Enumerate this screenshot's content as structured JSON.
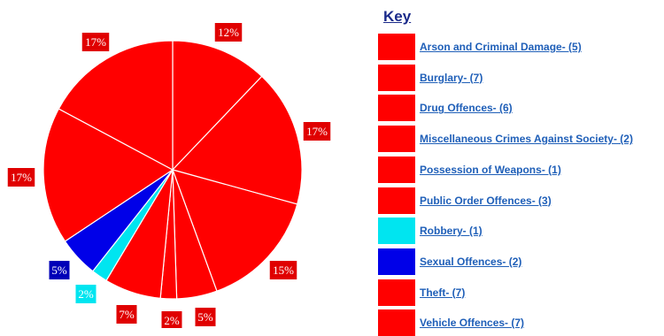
{
  "chart_data": {
    "type": "pie",
    "legend_title": "Key",
    "legend_placement": "right",
    "slices": [
      {
        "label": "12%",
        "value": 12,
        "color": "#ff0000"
      },
      {
        "label": "17%",
        "value": 17,
        "color": "#ff0000"
      },
      {
        "label": "15%",
        "value": 15,
        "color": "#ff0000"
      },
      {
        "label": "5%",
        "value": 5,
        "color": "#ff0000"
      },
      {
        "label": "2%",
        "value": 2,
        "color": "#ff0000"
      },
      {
        "label": "7%",
        "value": 7,
        "color": "#ff0000"
      },
      {
        "label": "2%",
        "value": 2,
        "color": "#00e5f0"
      },
      {
        "label": "5%",
        "value": 5,
        "color": "#0000e8"
      },
      {
        "label": "17%",
        "value": 17,
        "color": "#ff0000"
      },
      {
        "label": "17%",
        "value": 17,
        "color": "#ff0000"
      }
    ],
    "legend": [
      {
        "label": "Arson and Criminal Damage- (5)",
        "color": "#ff0000"
      },
      {
        "label": "Burglary- (7)",
        "color": "#ff0000"
      },
      {
        "label": "Drug Offences- (6)",
        "color": "#ff0000"
      },
      {
        "label": "Miscellaneous Crimes Against Society- (2)",
        "color": "#ff0000"
      },
      {
        "label": "Possession of Weapons- (1)",
        "color": "#ff0000"
      },
      {
        "label": "Public Order Offences- (3)",
        "color": "#ff0000"
      },
      {
        "label": "Robbery- (1)",
        "color": "#00e5f0"
      },
      {
        "label": "Sexual Offences- (2)",
        "color": "#0000e8"
      },
      {
        "label": "Theft- (7)",
        "color": "#ff0000"
      },
      {
        "label": "Vehicle Offences- (7)",
        "color": "#ff0000"
      }
    ]
  }
}
